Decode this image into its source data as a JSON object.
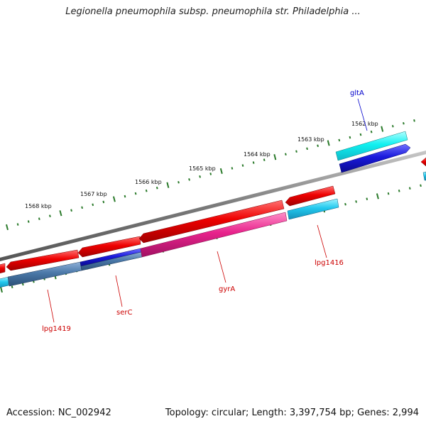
{
  "title": "Legionella pneumophila subsp. pneumophila str. Philadelphia ...",
  "footer": {
    "accession": "Accession: NC_002942",
    "topology": "Topology: circular; Length: 3,397,754 bp; Genes: 2,994"
  },
  "colors": {
    "backbone": "#808080",
    "tick": "#2a7a2a",
    "gene_red": "#ee0000",
    "gene_cyan": "#22c8ee",
    "gene_blue": "#1a1adc",
    "gene_magenta": "#e8238c",
    "label_red": "#cc0000",
    "label_blue": "#0000cc"
  },
  "scale_labels": [
    "1568 kbp",
    "1567 kbp",
    "1566 kbp",
    "1565 kbp",
    "1564 kbp",
    "1563 kbp",
    "1562 kbp"
  ],
  "genes": [
    {
      "name": "gltA",
      "color": "label_blue"
    },
    {
      "name": "lpg1416",
      "color": "label_red"
    },
    {
      "name": "gyrA",
      "color": "label_red"
    },
    {
      "name": "serC",
      "color": "label_red"
    },
    {
      "name": "lpg1419",
      "color": "label_red"
    }
  ]
}
